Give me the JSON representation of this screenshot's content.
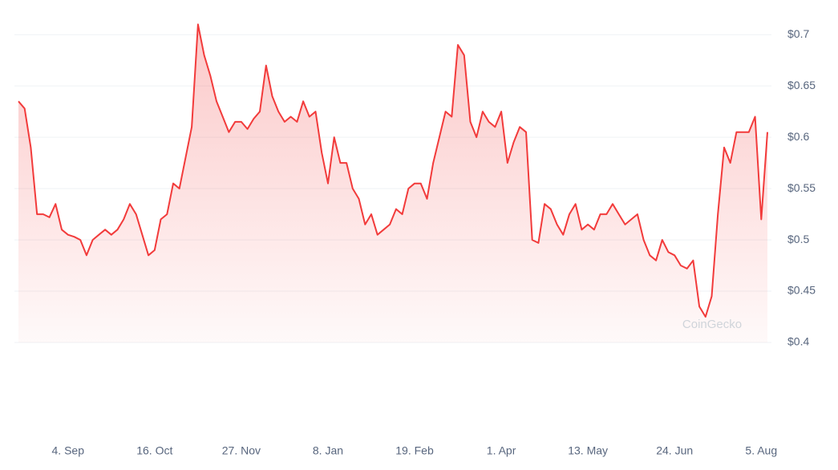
{
  "chart_data": {
    "type": "line",
    "categories": [
      null,
      null,
      null,
      null,
      null,
      null,
      null,
      null,
      "4. Sep",
      null,
      null,
      null,
      null,
      null,
      null,
      null,
      null,
      null,
      null,
      null,
      null,
      null,
      "16. Oct",
      null,
      null,
      null,
      null,
      null,
      null,
      null,
      null,
      null,
      null,
      null,
      null,
      null,
      "27. Nov",
      null,
      null,
      null,
      null,
      null,
      null,
      null,
      null,
      null,
      null,
      null,
      null,
      null,
      "8. Jan",
      null,
      null,
      null,
      null,
      null,
      null,
      null,
      null,
      null,
      null,
      null,
      null,
      null,
      "19. Feb",
      null,
      null,
      null,
      null,
      null,
      null,
      null,
      null,
      null,
      null,
      null,
      null,
      null,
      "1. Apr",
      null,
      null,
      null,
      null,
      null,
      null,
      null,
      null,
      null,
      null,
      null,
      null,
      null,
      "13. May",
      null,
      null,
      null,
      null,
      null,
      null,
      null,
      null,
      null,
      null,
      null,
      null,
      null,
      "24. Jun",
      null,
      null,
      null,
      null,
      null,
      null,
      null,
      null,
      null,
      null,
      null,
      null,
      null,
      "5. Aug",
      null
    ],
    "values": [
      0.635,
      0.628,
      0.59,
      0.525,
      0.525,
      0.522,
      0.535,
      0.51,
      0.505,
      0.503,
      0.5,
      0.485,
      0.5,
      0.505,
      0.51,
      0.505,
      0.51,
      0.52,
      0.535,
      0.525,
      0.505,
      0.485,
      0.49,
      0.52,
      0.525,
      0.555,
      0.55,
      0.58,
      0.61,
      0.71,
      0.68,
      0.66,
      0.635,
      0.62,
      0.605,
      0.615,
      0.615,
      0.608,
      0.618,
      0.625,
      0.67,
      0.64,
      0.625,
      0.615,
      0.62,
      0.615,
      0.635,
      0.62,
      0.625,
      0.585,
      0.555,
      0.6,
      0.575,
      0.575,
      0.55,
      0.54,
      0.515,
      0.525,
      0.505,
      0.51,
      0.515,
      0.53,
      0.525,
      0.55,
      0.555,
      0.555,
      0.54,
      0.575,
      0.6,
      0.625,
      0.62,
      0.69,
      0.68,
      0.615,
      0.6,
      0.625,
      0.615,
      0.61,
      0.625,
      0.575,
      0.595,
      0.61,
      0.605,
      0.5,
      0.497,
      0.535,
      0.53,
      0.515,
      0.505,
      0.525,
      0.535,
      0.51,
      0.515,
      0.51,
      0.525,
      0.525,
      0.535,
      0.525,
      0.515,
      0.52,
      0.525,
      0.5,
      0.485,
      0.48,
      0.5,
      0.488,
      0.485,
      0.475,
      0.472,
      0.48,
      0.435,
      0.425,
      0.445,
      0.525,
      0.59,
      0.575,
      0.605,
      0.605,
      0.605,
      0.62,
      0.52,
      0.605
    ],
    "color": "#f23b3b",
    "ylim": [
      0.4,
      0.715
    ],
    "yticks": [
      {
        "value": 0.4,
        "label": "$0.4"
      },
      {
        "value": 0.45,
        "label": "$0.45"
      },
      {
        "value": 0.5,
        "label": "$0.5"
      },
      {
        "value": 0.55,
        "label": "$0.55"
      },
      {
        "value": 0.6,
        "label": "$0.6"
      },
      {
        "value": 0.65,
        "label": "$0.65"
      },
      {
        "value": 0.7,
        "label": "$0.7"
      }
    ],
    "grid": true,
    "watermark": "CoinGecko"
  }
}
